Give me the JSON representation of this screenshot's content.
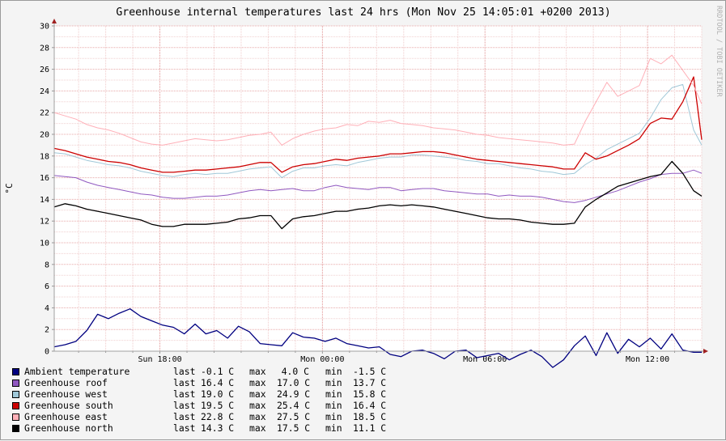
{
  "chart_data": {
    "type": "line",
    "title": "Greenhouse internal temperatures last 24 hrs (Mon Nov 25 14:05:01 +0200 2013)",
    "ylabel": "°C",
    "side_label": "RRDTOOL / TOBI OETIKER",
    "ylim": [
      0,
      30
    ],
    "yticks": [
      "0",
      "2",
      "4",
      "6",
      "8",
      "10",
      "12",
      "14",
      "16",
      "18",
      "20",
      "22",
      "24",
      "26",
      "28",
      "30"
    ],
    "x_unit": "hours",
    "xlim": [
      -3.9,
      20.0
    ],
    "xticks": [
      {
        "value": 0,
        "label": "Sun 18:00"
      },
      {
        "value": 6,
        "label": "Mon 00:00"
      },
      {
        "value": 12,
        "label": "Mon 06:00"
      },
      {
        "value": 18,
        "label": "Mon 12:00"
      }
    ],
    "grid": true,
    "legend_position": "bottom-left",
    "series": [
      {
        "name": "Ambient temperature",
        "color": "#000080",
        "x": [
          -3.9,
          -3.5,
          -3.1,
          -2.7,
          -2.3,
          -1.9,
          -1.5,
          -1.1,
          -0.7,
          -0.3,
          0.1,
          0.5,
          0.9,
          1.3,
          1.7,
          2.1,
          2.5,
          2.9,
          3.3,
          3.7,
          4.1,
          4.5,
          4.9,
          5.3,
          5.7,
          6.1,
          6.5,
          6.9,
          7.3,
          7.7,
          8.1,
          8.5,
          8.9,
          9.3,
          9.7,
          10.1,
          10.5,
          10.9,
          11.3,
          11.7,
          12.1,
          12.5,
          12.9,
          13.3,
          13.7,
          14.1,
          14.5,
          14.9,
          15.3,
          15.7,
          16.1,
          16.5,
          16.9,
          17.3,
          17.7,
          18.1,
          18.5,
          18.9,
          19.3,
          19.7,
          20.0
        ],
        "values": [
          0.4,
          0.6,
          0.9,
          1.9,
          3.4,
          3.0,
          3.5,
          3.9,
          3.2,
          2.8,
          2.4,
          2.2,
          1.6,
          2.5,
          1.6,
          1.9,
          1.2,
          2.3,
          1.8,
          0.7,
          0.6,
          0.5,
          1.7,
          1.3,
          1.2,
          0.9,
          1.2,
          0.7,
          0.5,
          0.3,
          0.4,
          -0.3,
          -0.5,
          0.0,
          0.1,
          -0.2,
          -0.7,
          0.0,
          0.1,
          -0.6,
          -0.4,
          -0.2,
          -0.8,
          -0.3,
          0.1,
          -0.5,
          -1.5,
          -0.8,
          0.5,
          1.4,
          -0.4,
          1.7,
          -0.2,
          1.1,
          0.4,
          1.2,
          0.2,
          1.6,
          0.1,
          -0.1,
          -0.1
        ]
      },
      {
        "name": "Greenhouse roof",
        "color": "#9058c0",
        "x": [
          -3.9,
          -3.5,
          -3.1,
          -2.7,
          -2.3,
          -1.9,
          -1.5,
          -1.1,
          -0.7,
          -0.3,
          0.1,
          0.5,
          0.9,
          1.3,
          1.7,
          2.1,
          2.5,
          2.9,
          3.3,
          3.7,
          4.1,
          4.5,
          4.9,
          5.3,
          5.7,
          6.1,
          6.5,
          6.9,
          7.3,
          7.7,
          8.1,
          8.5,
          8.9,
          9.3,
          9.7,
          10.1,
          10.5,
          10.9,
          11.3,
          11.7,
          12.1,
          12.5,
          12.9,
          13.3,
          13.7,
          14.1,
          14.5,
          14.9,
          15.3,
          15.7,
          16.1,
          16.5,
          16.9,
          17.3,
          17.7,
          18.1,
          18.5,
          18.9,
          19.3,
          19.7,
          20.0
        ],
        "values": [
          16.2,
          16.1,
          16.0,
          15.6,
          15.3,
          15.1,
          14.9,
          14.7,
          14.5,
          14.4,
          14.2,
          14.1,
          14.1,
          14.2,
          14.3,
          14.3,
          14.4,
          14.6,
          14.8,
          14.9,
          14.8,
          14.9,
          15.0,
          14.8,
          14.8,
          15.1,
          15.3,
          15.1,
          15.0,
          14.9,
          15.1,
          15.1,
          14.8,
          14.9,
          15.0,
          15.0,
          14.8,
          14.7,
          14.6,
          14.5,
          14.5,
          14.3,
          14.4,
          14.3,
          14.3,
          14.2,
          14.0,
          13.8,
          13.7,
          13.9,
          14.2,
          14.5,
          14.8,
          15.2,
          15.6,
          15.9,
          16.3,
          16.4,
          16.4,
          16.7,
          16.4
        ]
      },
      {
        "name": "Greenhouse west",
        "color": "#a0c8d8",
        "x": [
          -3.9,
          -3.5,
          -3.1,
          -2.7,
          -2.3,
          -1.9,
          -1.5,
          -1.1,
          -0.7,
          -0.3,
          0.1,
          0.5,
          0.9,
          1.3,
          1.7,
          2.1,
          2.5,
          2.9,
          3.3,
          3.7,
          4.1,
          4.5,
          4.9,
          5.3,
          5.7,
          6.1,
          6.5,
          6.9,
          7.3,
          7.7,
          8.1,
          8.5,
          8.9,
          9.3,
          9.7,
          10.1,
          10.5,
          10.9,
          11.3,
          11.7,
          12.1,
          12.5,
          12.9,
          13.3,
          13.7,
          14.1,
          14.5,
          14.9,
          15.3,
          15.7,
          16.1,
          16.5,
          16.9,
          17.3,
          17.7,
          18.1,
          18.5,
          18.9,
          19.3,
          19.7,
          20.0
        ],
        "values": [
          18.3,
          18.2,
          17.9,
          17.6,
          17.4,
          17.2,
          17.1,
          16.9,
          16.6,
          16.4,
          16.2,
          16.1,
          16.3,
          16.4,
          16.3,
          16.4,
          16.4,
          16.6,
          16.8,
          16.9,
          17.0,
          16.0,
          16.6,
          16.9,
          16.9,
          17.1,
          17.2,
          17.1,
          17.4,
          17.6,
          17.8,
          17.9,
          17.9,
          18.1,
          18.1,
          18.0,
          17.9,
          17.8,
          17.6,
          17.5,
          17.3,
          17.3,
          17.1,
          16.9,
          16.8,
          16.6,
          16.5,
          16.3,
          16.4,
          17.2,
          17.8,
          18.6,
          19.1,
          19.6,
          20.1,
          21.5,
          23.2,
          24.3,
          24.6,
          20.4,
          19.0
        ]
      },
      {
        "name": "Greenhouse south",
        "color": "#cc0000",
        "x": [
          -3.9,
          -3.5,
          -3.1,
          -2.7,
          -2.3,
          -1.9,
          -1.5,
          -1.1,
          -0.7,
          -0.3,
          0.1,
          0.5,
          0.9,
          1.3,
          1.7,
          2.1,
          2.5,
          2.9,
          3.3,
          3.7,
          4.1,
          4.5,
          4.9,
          5.3,
          5.7,
          6.1,
          6.5,
          6.9,
          7.3,
          7.7,
          8.1,
          8.5,
          8.9,
          9.3,
          9.7,
          10.1,
          10.5,
          10.9,
          11.3,
          11.7,
          12.1,
          12.5,
          12.9,
          13.3,
          13.7,
          14.1,
          14.5,
          14.9,
          15.3,
          15.7,
          16.1,
          16.5,
          16.9,
          17.3,
          17.7,
          18.1,
          18.5,
          18.9,
          19.3,
          19.7,
          20.0
        ],
        "values": [
          18.7,
          18.5,
          18.2,
          17.9,
          17.7,
          17.5,
          17.4,
          17.2,
          16.9,
          16.7,
          16.5,
          16.5,
          16.6,
          16.7,
          16.7,
          16.8,
          16.9,
          17.0,
          17.2,
          17.4,
          17.4,
          16.5,
          17.0,
          17.2,
          17.3,
          17.5,
          17.7,
          17.6,
          17.8,
          17.9,
          18.0,
          18.2,
          18.2,
          18.3,
          18.4,
          18.4,
          18.3,
          18.1,
          17.9,
          17.7,
          17.6,
          17.5,
          17.4,
          17.3,
          17.2,
          17.1,
          17.0,
          16.8,
          16.8,
          18.3,
          17.7,
          18.0,
          18.5,
          19.0,
          19.6,
          21.0,
          21.5,
          21.4,
          23.0,
          25.3,
          19.5
        ]
      },
      {
        "name": "Greenhouse east",
        "color": "#ffb0b8",
        "x": [
          -3.9,
          -3.5,
          -3.1,
          -2.7,
          -2.3,
          -1.9,
          -1.5,
          -1.1,
          -0.7,
          -0.3,
          0.1,
          0.5,
          0.9,
          1.3,
          1.7,
          2.1,
          2.5,
          2.9,
          3.3,
          3.7,
          4.1,
          4.5,
          4.9,
          5.3,
          5.7,
          6.1,
          6.5,
          6.9,
          7.3,
          7.7,
          8.1,
          8.5,
          8.9,
          9.3,
          9.7,
          10.1,
          10.5,
          10.9,
          11.3,
          11.7,
          12.1,
          12.5,
          12.9,
          13.3,
          13.7,
          14.1,
          14.5,
          14.9,
          15.3,
          15.7,
          16.1,
          16.5,
          16.9,
          17.3,
          17.7,
          18.1,
          18.5,
          18.9,
          19.3,
          19.7,
          20.0
        ],
        "values": [
          22.0,
          21.7,
          21.4,
          20.9,
          20.6,
          20.4,
          20.1,
          19.7,
          19.3,
          19.1,
          19.0,
          19.2,
          19.4,
          19.6,
          19.5,
          19.4,
          19.5,
          19.7,
          19.9,
          20.0,
          20.2,
          19.0,
          19.6,
          20.0,
          20.3,
          20.5,
          20.6,
          20.9,
          20.8,
          21.2,
          21.1,
          21.3,
          21.0,
          20.9,
          20.8,
          20.6,
          20.5,
          20.4,
          20.2,
          20.0,
          19.9,
          19.7,
          19.6,
          19.5,
          19.4,
          19.3,
          19.2,
          19.0,
          19.1,
          21.2,
          23.0,
          24.8,
          23.5,
          24.0,
          24.5,
          27.0,
          26.5,
          27.3,
          25.9,
          24.5,
          22.8
        ]
      },
      {
        "name": "Greenhouse north",
        "color": "#000000",
        "x": [
          -3.9,
          -3.5,
          -3.1,
          -2.7,
          -2.3,
          -1.9,
          -1.5,
          -1.1,
          -0.7,
          -0.3,
          0.1,
          0.5,
          0.9,
          1.3,
          1.7,
          2.1,
          2.5,
          2.9,
          3.3,
          3.7,
          4.1,
          4.5,
          4.9,
          5.3,
          5.7,
          6.1,
          6.5,
          6.9,
          7.3,
          7.7,
          8.1,
          8.5,
          8.9,
          9.3,
          9.7,
          10.1,
          10.5,
          10.9,
          11.3,
          11.7,
          12.1,
          12.5,
          12.9,
          13.3,
          13.7,
          14.1,
          14.5,
          14.9,
          15.3,
          15.7,
          16.1,
          16.5,
          16.9,
          17.3,
          17.7,
          18.1,
          18.5,
          18.9,
          19.3,
          19.7,
          20.0
        ],
        "values": [
          13.3,
          13.6,
          13.4,
          13.1,
          12.9,
          12.7,
          12.5,
          12.3,
          12.1,
          11.7,
          11.5,
          11.5,
          11.7,
          11.7,
          11.7,
          11.8,
          11.9,
          12.2,
          12.3,
          12.5,
          12.5,
          11.3,
          12.2,
          12.4,
          12.5,
          12.7,
          12.9,
          12.9,
          13.1,
          13.2,
          13.4,
          13.5,
          13.4,
          13.5,
          13.4,
          13.3,
          13.1,
          12.9,
          12.7,
          12.5,
          12.3,
          12.2,
          12.2,
          12.1,
          11.9,
          11.8,
          11.7,
          11.7,
          11.8,
          13.3,
          14.0,
          14.6,
          15.2,
          15.5,
          15.8,
          16.1,
          16.3,
          17.5,
          16.4,
          14.8,
          14.3
        ]
      }
    ],
    "legend": [
      {
        "name": "Ambient temperature",
        "last": "-0.1 C",
        "max": "4.0 C",
        "min": "-1.5 C"
      },
      {
        "name": "Greenhouse roof",
        "last": "16.4 C",
        "max": "17.0 C",
        "min": "13.7 C"
      },
      {
        "name": "Greenhouse west",
        "last": "19.0 C",
        "max": "24.9 C",
        "min": "15.8 C"
      },
      {
        "name": "Greenhouse south",
        "last": "19.5 C",
        "max": "25.4 C",
        "min": "16.4 C"
      },
      {
        "name": "Greenhouse east",
        "last": "22.8 C",
        "max": "27.5 C",
        "min": "18.5 C"
      },
      {
        "name": "Greenhouse north",
        "last": "14.3 C",
        "max": "17.5 C",
        "min": "11.1 C"
      }
    ],
    "legend_keys": {
      "last": "last",
      "max": "max",
      "min": "min"
    }
  }
}
